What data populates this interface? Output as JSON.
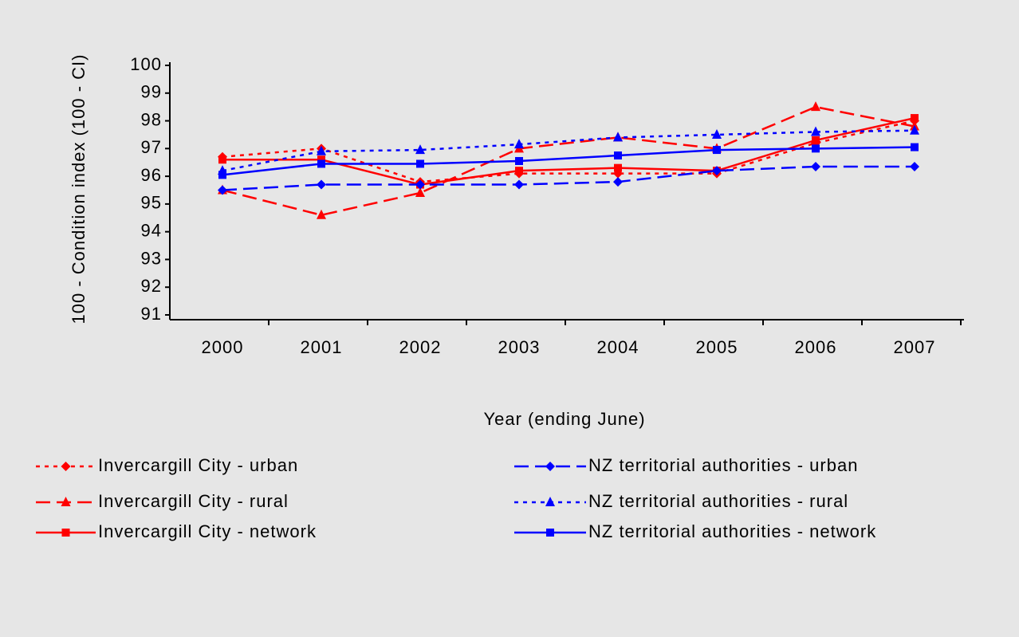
{
  "chart_data": {
    "type": "line",
    "x_label": "Year (ending June)",
    "y_label": "100 - Condition index (100 - CI)",
    "categories": [
      "2000",
      "2001",
      "2002",
      "2003",
      "2004",
      "2005",
      "2006",
      "2007"
    ],
    "ylim": [
      91,
      100
    ],
    "yticks": [
      91,
      92,
      93,
      94,
      95,
      96,
      97,
      98,
      99,
      100
    ],
    "grid": false,
    "series": [
      {
        "name": "Invercargill City - urban",
        "color": "#ff0000",
        "line_style": "dotted",
        "marker": "diamond",
        "values": [
          96.7,
          97.0,
          95.8,
          96.1,
          96.1,
          96.1,
          97.2,
          98.0
        ]
      },
      {
        "name": "Invercargill City - rural",
        "color": "#ff0000",
        "line_style": "dashed",
        "marker": "triangle",
        "values": [
          95.5,
          94.6,
          95.4,
          97.0,
          97.4,
          97.0,
          98.5,
          97.8
        ]
      },
      {
        "name": "Invercargill City - network",
        "color": "#ff0000",
        "line_style": "solid",
        "marker": "square",
        "values": [
          96.6,
          96.6,
          95.7,
          96.2,
          96.3,
          96.2,
          97.3,
          98.1
        ]
      },
      {
        "name": "NZ territorial authorities - urban",
        "color": "#0000ff",
        "line_style": "dashed",
        "marker": "diamond",
        "values": [
          95.5,
          95.7,
          95.7,
          95.7,
          95.8,
          96.2,
          96.35,
          96.35
        ]
      },
      {
        "name": "NZ territorial authorities - rural",
        "color": "#0000ff",
        "line_style": "dotted",
        "marker": "triangle",
        "values": [
          96.2,
          96.9,
          96.95,
          97.15,
          97.4,
          97.5,
          97.6,
          97.65
        ]
      },
      {
        "name": "NZ territorial authorities - network",
        "color": "#0000ff",
        "line_style": "solid",
        "marker": "square",
        "values": [
          96.05,
          96.45,
          96.45,
          96.55,
          96.75,
          96.95,
          97.0,
          97.05
        ]
      }
    ]
  }
}
